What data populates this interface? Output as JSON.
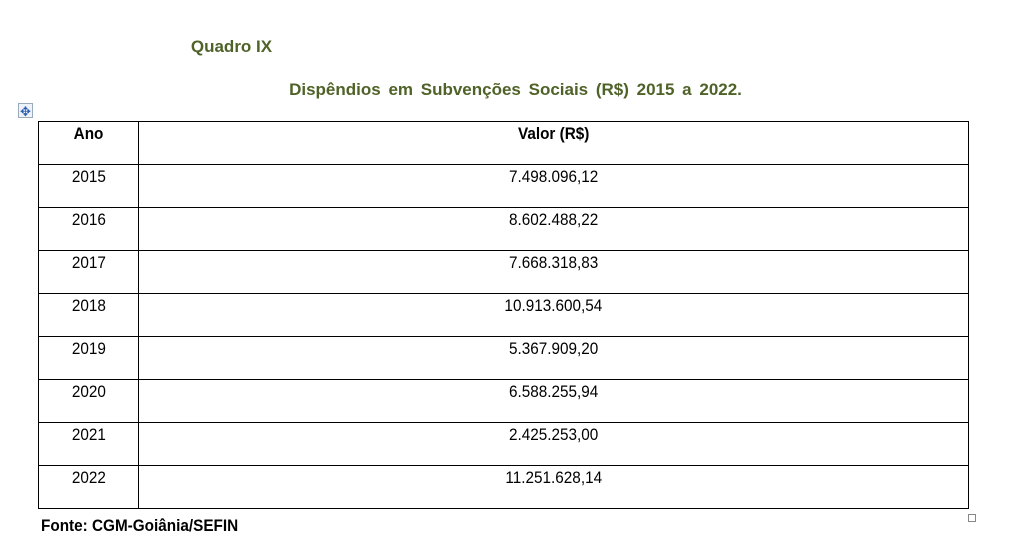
{
  "title": "Quadro IX",
  "subtitle": "Dispêndios em Subvenções Sociais (R$) 2015 a 2022.",
  "table": {
    "headers": [
      "Ano",
      "Valor (R$)"
    ],
    "rows": [
      [
        "2015",
        "7.498.096,12"
      ],
      [
        "2016",
        "8.602.488,22"
      ],
      [
        "2017",
        "7.668.318,83"
      ],
      [
        "2018",
        "10.913.600,54"
      ],
      [
        "2019",
        "5.367.909,20"
      ],
      [
        "2020",
        "6.588.255,94"
      ],
      [
        "2021",
        "2.425.253,00"
      ],
      [
        "2022",
        "11.251.628,14"
      ]
    ]
  },
  "source": "Fonte: CGM-Goiânia/SEFIN",
  "colors": {
    "title": "#4f6228"
  }
}
